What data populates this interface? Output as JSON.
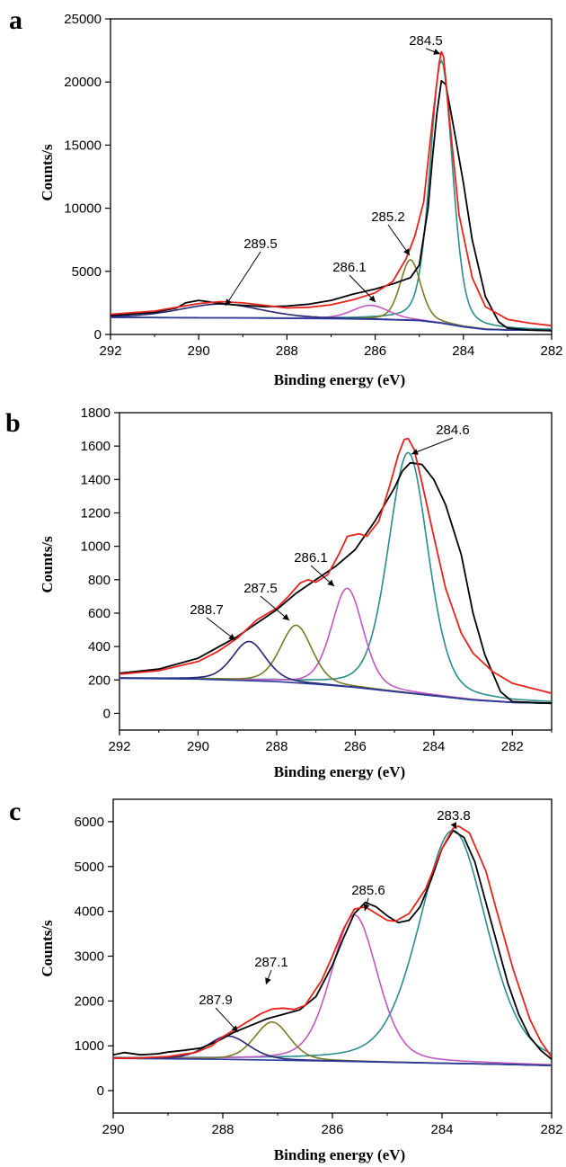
{
  "chart_data": [
    {
      "panel": "a",
      "type": "line",
      "xlabel": "Binding energy (eV)",
      "ylabel": "Counts/s",
      "xlim": [
        292,
        282
      ],
      "ylim": [
        0,
        25000
      ],
      "x_ticks": [
        292,
        290,
        288,
        286,
        284,
        282
      ],
      "y_ticks": [
        0,
        5000,
        10000,
        15000,
        20000,
        25000
      ],
      "x_reversed": true,
      "colors": {
        "raw": "#000000",
        "envelope": "#e8231c",
        "background": "#2b3a9b",
        "c1": "#2a8c8c",
        "c2": "#7b7a28",
        "c3": "#c257c2",
        "c4": "#262672"
      },
      "raw": [
        [
          292,
          1500
        ],
        [
          291,
          1750
        ],
        [
          290.5,
          2100
        ],
        [
          290.3,
          2500
        ],
        [
          290,
          2700
        ],
        [
          289.6,
          2500
        ],
        [
          289.2,
          2350
        ],
        [
          288.5,
          2200
        ],
        [
          288,
          2250
        ],
        [
          287.5,
          2400
        ],
        [
          287,
          2700
        ],
        [
          286.5,
          3200
        ],
        [
          286,
          3600
        ],
        [
          285.6,
          4000
        ],
        [
          285.2,
          4500
        ],
        [
          285,
          5500
        ],
        [
          284.8,
          10000
        ],
        [
          284.7,
          14000
        ],
        [
          284.6,
          17500
        ],
        [
          284.5,
          20100
        ],
        [
          284.4,
          19800
        ],
        [
          284.2,
          16000
        ],
        [
          284,
          12000
        ],
        [
          283.8,
          7500
        ],
        [
          283.5,
          3000
        ],
        [
          283.2,
          1000
        ],
        [
          283,
          500
        ],
        [
          282.5,
          350
        ],
        [
          282,
          300
        ]
      ],
      "envelope": [
        [
          292,
          1600
        ],
        [
          291,
          1850
        ],
        [
          290.5,
          2150
        ],
        [
          290,
          2450
        ],
        [
          289.5,
          2600
        ],
        [
          289,
          2500
        ],
        [
          288.5,
          2300
        ],
        [
          288,
          2100
        ],
        [
          287.5,
          2150
        ],
        [
          287,
          2350
        ],
        [
          286.5,
          2750
        ],
        [
          286,
          3300
        ],
        [
          285.6,
          4200
        ],
        [
          285.3,
          6000
        ],
        [
          285.1,
          7800
        ],
        [
          284.9,
          10500
        ],
        [
          284.7,
          17000
        ],
        [
          284.55,
          21500
        ],
        [
          284.5,
          22400
        ],
        [
          284.45,
          22000
        ],
        [
          284.3,
          16500
        ],
        [
          284.1,
          9500
        ],
        [
          283.8,
          4500
        ],
        [
          283.5,
          2200
        ],
        [
          283,
          1200
        ],
        [
          282.5,
          900
        ],
        [
          282,
          700
        ]
      ],
      "background": [
        [
          292,
          1350
        ],
        [
          289,
          1300
        ],
        [
          287,
          1250
        ],
        [
          286,
          1200
        ],
        [
          285,
          1100
        ],
        [
          284.5,
          900
        ],
        [
          284,
          600
        ],
        [
          283.5,
          400
        ],
        [
          283,
          350
        ],
        [
          282,
          320
        ]
      ],
      "components": [
        {
          "center": 284.5,
          "height": 20800,
          "fwhm": 0.6,
          "color_key": "c1"
        },
        {
          "center": 285.2,
          "height": 4800,
          "fwhm": 0.55,
          "color_key": "c2"
        },
        {
          "center": 286.1,
          "height": 1100,
          "fwhm": 1.0,
          "color_key": "c3"
        },
        {
          "center": 289.5,
          "height": 1100,
          "fwhm": 2.2,
          "color_key": "c4"
        }
      ],
      "annotations": [
        {
          "text": "284.5",
          "x": 284.5
        },
        {
          "text": "285.2",
          "x": 285.2
        },
        {
          "text": "286.1",
          "x": 286.1
        },
        {
          "text": "289.5",
          "x": 289.5
        }
      ]
    },
    {
      "panel": "b",
      "type": "line",
      "xlabel": "Binding energy (eV)",
      "ylabel": "Counts/s",
      "xlim": [
        292,
        281
      ],
      "ylim": [
        -100,
        1800
      ],
      "x_ticks": [
        292,
        290,
        288,
        286,
        284,
        282
      ],
      "y_ticks": [
        0,
        200,
        400,
        600,
        800,
        1000,
        1200,
        1400,
        1600,
        1800
      ],
      "x_reversed": true,
      "colors": {
        "raw": "#000000",
        "envelope": "#e8231c",
        "background": "#2b3a9b",
        "c1": "#2a8c8c",
        "c2": "#c257c2",
        "c3": "#7b7a28",
        "c4": "#262672"
      },
      "raw": [
        [
          292,
          240
        ],
        [
          291,
          265
        ],
        [
          290,
          330
        ],
        [
          289,
          460
        ],
        [
          288.5,
          540
        ],
        [
          288,
          620
        ],
        [
          287.5,
          720
        ],
        [
          287,
          800
        ],
        [
          286.5,
          880
        ],
        [
          286,
          980
        ],
        [
          285.5,
          1150
        ],
        [
          285,
          1350
        ],
        [
          284.8,
          1450
        ],
        [
          284.6,
          1500
        ],
        [
          284.3,
          1490
        ],
        [
          284,
          1400
        ],
        [
          283.7,
          1250
        ],
        [
          283.3,
          950
        ],
        [
          283,
          600
        ],
        [
          282.7,
          350
        ],
        [
          282.3,
          130
        ],
        [
          282,
          70
        ],
        [
          281,
          60
        ]
      ],
      "envelope": [
        [
          292,
          235
        ],
        [
          291,
          255
        ],
        [
          290,
          310
        ],
        [
          289.5,
          370
        ],
        [
          289,
          450
        ],
        [
          288.5,
          560
        ],
        [
          288,
          630
        ],
        [
          287.7,
          700
        ],
        [
          287.4,
          780
        ],
        [
          287.2,
          800
        ],
        [
          287,
          785
        ],
        [
          286.7,
          830
        ],
        [
          286.4,
          960
        ],
        [
          286.2,
          1060
        ],
        [
          285.9,
          1075
        ],
        [
          285.7,
          1060
        ],
        [
          285.4,
          1150
        ],
        [
          285.1,
          1380
        ],
        [
          284.9,
          1550
        ],
        [
          284.75,
          1640
        ],
        [
          284.65,
          1645
        ],
        [
          284.5,
          1580
        ],
        [
          284.3,
          1380
        ],
        [
          284,
          1060
        ],
        [
          283.7,
          750
        ],
        [
          283.3,
          480
        ],
        [
          283,
          360
        ],
        [
          282.5,
          250
        ],
        [
          282,
          180
        ],
        [
          281,
          120
        ]
      ],
      "background": [
        [
          292,
          210
        ],
        [
          290,
          205
        ],
        [
          288,
          190
        ],
        [
          287,
          175
        ],
        [
          286,
          155
        ],
        [
          285,
          130
        ],
        [
          284,
          105
        ],
        [
          283,
          80
        ],
        [
          282,
          65
        ],
        [
          281,
          60
        ]
      ],
      "components": [
        {
          "center": 284.65,
          "height": 1440,
          "fwhm": 1.2,
          "color_key": "c1"
        },
        {
          "center": 286.2,
          "height": 590,
          "fwhm": 0.95,
          "color_key": "c2"
        },
        {
          "center": 287.5,
          "height": 345,
          "fwhm": 0.95,
          "color_key": "c3"
        },
        {
          "center": 288.7,
          "height": 235,
          "fwhm": 1.0,
          "color_key": "c4"
        }
      ],
      "annotations": [
        {
          "text": "284.6",
          "x": 284.6
        },
        {
          "text": "286.1",
          "x": 286.1
        },
        {
          "text": "287.5",
          "x": 287.5
        },
        {
          "text": "288.7",
          "x": 288.7
        }
      ]
    },
    {
      "panel": "c",
      "type": "line",
      "xlabel": "Binding energy (eV)",
      "ylabel": "Counts/s",
      "xlim": [
        290,
        282
      ],
      "ylim": [
        -500,
        6500
      ],
      "x_ticks": [
        290,
        288,
        286,
        284,
        282
      ],
      "y_ticks": [
        0,
        1000,
        2000,
        3000,
        4000,
        5000,
        6000
      ],
      "x_reversed": true,
      "colors": {
        "raw": "#000000",
        "envelope": "#e8231c",
        "background": "#2b3a9b",
        "c1": "#2a8c8c",
        "c2": "#c257c2",
        "c3": "#7b7a28",
        "c4": "#262672"
      },
      "raw": [
        [
          290,
          800
        ],
        [
          289.8,
          850
        ],
        [
          289.5,
          800
        ],
        [
          289.2,
          820
        ],
        [
          289,
          860
        ],
        [
          288.7,
          900
        ],
        [
          288.4,
          950
        ],
        [
          288.1,
          1100
        ],
        [
          287.8,
          1300
        ],
        [
          287.5,
          1450
        ],
        [
          287.2,
          1600
        ],
        [
          286.9,
          1700
        ],
        [
          286.6,
          1800
        ],
        [
          286.3,
          2100
        ],
        [
          286,
          2800
        ],
        [
          285.8,
          3400
        ],
        [
          285.6,
          3950
        ],
        [
          285.4,
          4200
        ],
        [
          285.2,
          4100
        ],
        [
          285,
          3900
        ],
        [
          284.8,
          3750
        ],
        [
          284.6,
          3800
        ],
        [
          284.4,
          4100
        ],
        [
          284.2,
          4700
        ],
        [
          284,
          5400
        ],
        [
          283.8,
          5800
        ],
        [
          283.6,
          5650
        ],
        [
          283.4,
          5100
        ],
        [
          283.2,
          4200
        ],
        [
          283,
          3300
        ],
        [
          282.8,
          2400
        ],
        [
          282.6,
          1700
        ],
        [
          282.4,
          1200
        ],
        [
          282.2,
          900
        ],
        [
          282,
          700
        ]
      ],
      "envelope": [
        [
          290,
          720
        ],
        [
          289.5,
          730
        ],
        [
          289,
          760
        ],
        [
          288.5,
          850
        ],
        [
          288.2,
          1000
        ],
        [
          288,
          1200
        ],
        [
          287.6,
          1500
        ],
        [
          287.3,
          1720
        ],
        [
          287.1,
          1820
        ],
        [
          286.9,
          1840
        ],
        [
          286.7,
          1810
        ],
        [
          286.5,
          1900
        ],
        [
          286.2,
          2450
        ],
        [
          286,
          3000
        ],
        [
          285.8,
          3600
        ],
        [
          285.6,
          4050
        ],
        [
          285.4,
          4100
        ],
        [
          285.2,
          3950
        ],
        [
          285,
          3800
        ],
        [
          284.85,
          3780
        ],
        [
          284.6,
          3950
        ],
        [
          284.3,
          4500
        ],
        [
          284,
          5400
        ],
        [
          283.8,
          5850
        ],
        [
          283.7,
          5900
        ],
        [
          283.5,
          5750
        ],
        [
          283.2,
          4900
        ],
        [
          283,
          4000
        ],
        [
          282.7,
          2700
        ],
        [
          282.4,
          1600
        ],
        [
          282.2,
          1100
        ],
        [
          282,
          750
        ]
      ],
      "background": [
        [
          290,
          720
        ],
        [
          288,
          700
        ],
        [
          286,
          660
        ],
        [
          284,
          610
        ],
        [
          283,
          590
        ],
        [
          282,
          560
        ]
      ],
      "components": [
        {
          "center": 283.8,
          "height": 5200,
          "fwhm": 1.45,
          "color_key": "c1"
        },
        {
          "center": 285.6,
          "height": 3270,
          "fwhm": 1.0,
          "color_key": "c2"
        },
        {
          "center": 287.1,
          "height": 850,
          "fwhm": 0.75,
          "color_key": "c3"
        },
        {
          "center": 287.9,
          "height": 520,
          "fwhm": 0.9,
          "color_key": "c4"
        }
      ],
      "annotations": [
        {
          "text": "283.8",
          "x": 283.8
        },
        {
          "text": "285.6",
          "x": 285.6
        },
        {
          "text": "287.1",
          "x": 287.1
        },
        {
          "text": "287.9",
          "x": 287.9
        }
      ]
    }
  ]
}
